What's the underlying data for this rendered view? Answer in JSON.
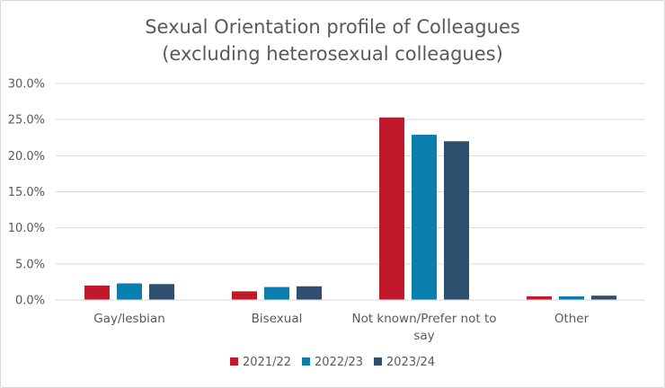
{
  "chart_data": {
    "type": "bar",
    "title_lines": [
      "Sexual Orientation profile of Colleagues",
      "(excluding heterosexual colleagues)"
    ],
    "categories": [
      {
        "lines": [
          "Gay/lesbian"
        ]
      },
      {
        "lines": [
          "Bisexual"
        ]
      },
      {
        "lines": [
          "Not known/Prefer not to",
          "say"
        ]
      },
      {
        "lines": [
          "Other"
        ]
      }
    ],
    "series": [
      {
        "name": "2021/22",
        "color": "#c0192b",
        "values": [
          2.0,
          1.2,
          25.3,
          0.5
        ]
      },
      {
        "name": "2022/23",
        "color": "#0a7fad",
        "values": [
          2.3,
          1.8,
          22.9,
          0.5
        ]
      },
      {
        "name": "2023/24",
        "color": "#2f4f6f",
        "values": [
          2.2,
          1.9,
          22.0,
          0.6
        ]
      }
    ],
    "ylim": [
      0,
      30
    ],
    "yticks": [
      0,
      5,
      10,
      15,
      20,
      25,
      30
    ],
    "ytick_labels": [
      "0.0%",
      "5.0%",
      "10.0%",
      "15.0%",
      "20.0%",
      "25.0%",
      "30.0%"
    ],
    "ylabel": "",
    "xlabel": "",
    "legend_position": "bottom",
    "grid": true
  }
}
